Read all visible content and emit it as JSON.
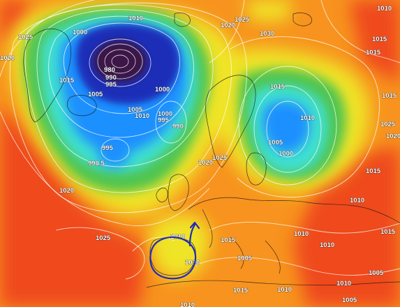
{
  "map": {
    "isobar_labels": [
      "1010",
      "1020",
      "1025",
      "1000",
      "1025",
      "1030",
      "1015",
      "1015",
      "1020",
      "980",
      "990",
      "995",
      "1015",
      "1005",
      "1000",
      "1015",
      "1005",
      "1010",
      "995",
      "1000",
      "990",
      "995",
      "1010",
      "1025",
      "990.5",
      "1020",
      "1025",
      "1005",
      "1000",
      "1015",
      "1010",
      "1020",
      "1010",
      "1010",
      "1025",
      "1015",
      "1005",
      "1010",
      "1015",
      "1010",
      "1010",
      "1005",
      "1015",
      "1010",
      "1005",
      "1010",
      "1020",
      "1015",
      "1010"
    ],
    "colors": {
      "deep_low": "#3a1446",
      "low": "#1f2fb8",
      "mid_low": "#1e90ff",
      "cyan": "#40e0d0",
      "green": "#4fc44f",
      "yellow": "#f0e428",
      "orange": "#f7931e",
      "red_orange": "#ef4a1c",
      "annotation": "#1f2db8"
    },
    "annotation": {
      "shape": "circle-with-arrow",
      "region": "Iberian Peninsula"
    }
  }
}
